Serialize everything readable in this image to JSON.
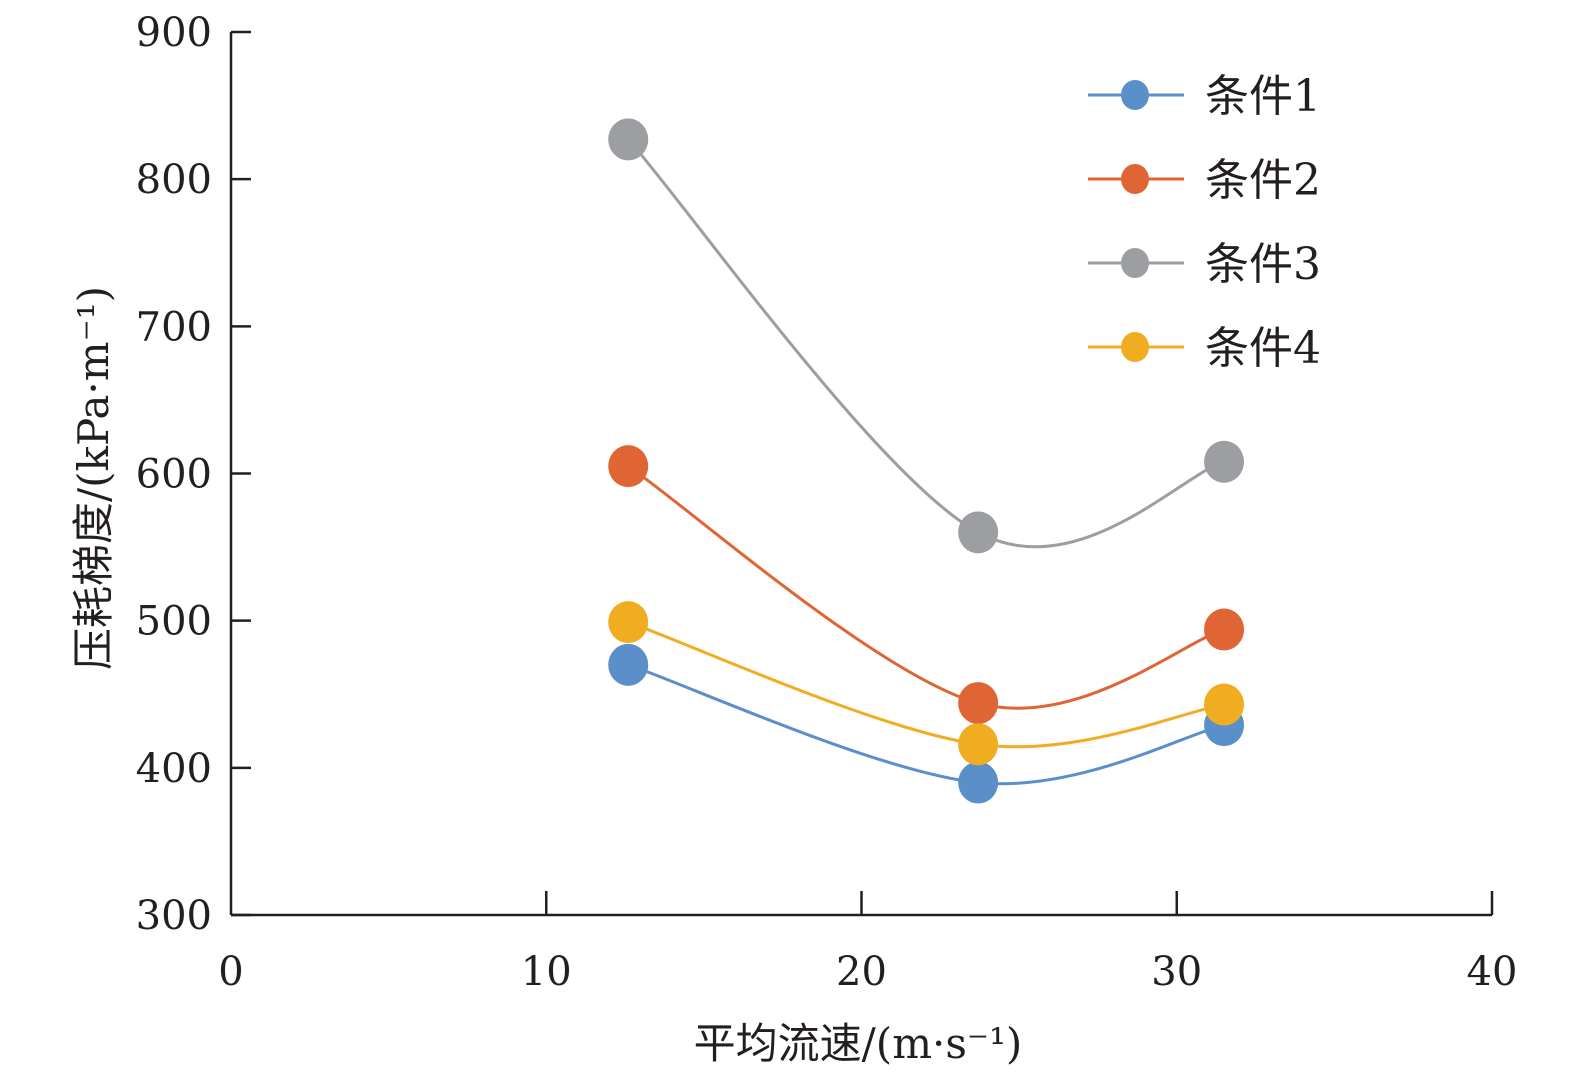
{
  "chart_data": {
    "type": "line",
    "title": "",
    "xlabel": "平均流速/(m·s⁻¹)",
    "ylabel": "压耗梯度/(kPa·m⁻¹)",
    "xlim": [
      0,
      40
    ],
    "ylim": [
      300,
      900
    ],
    "xticks": [
      0,
      10,
      20,
      30,
      40
    ],
    "yticks": [
      300,
      400,
      500,
      600,
      700,
      800,
      900
    ],
    "grid": false,
    "legend_position": "top-right",
    "smooth": true,
    "x": [
      12.6,
      23.7,
      31.5
    ],
    "series": [
      {
        "name": "条件1",
        "color": "#5b8fca",
        "values": [
          470,
          390,
          429
        ]
      },
      {
        "name": "条件2",
        "color": "#e06535",
        "values": [
          605,
          444,
          494
        ]
      },
      {
        "name": "条件3",
        "color": "#9d9ea1",
        "values": [
          827,
          560,
          608
        ]
      },
      {
        "name": "条件4",
        "color": "#f0ad22",
        "values": [
          499,
          416,
          443
        ]
      }
    ]
  }
}
